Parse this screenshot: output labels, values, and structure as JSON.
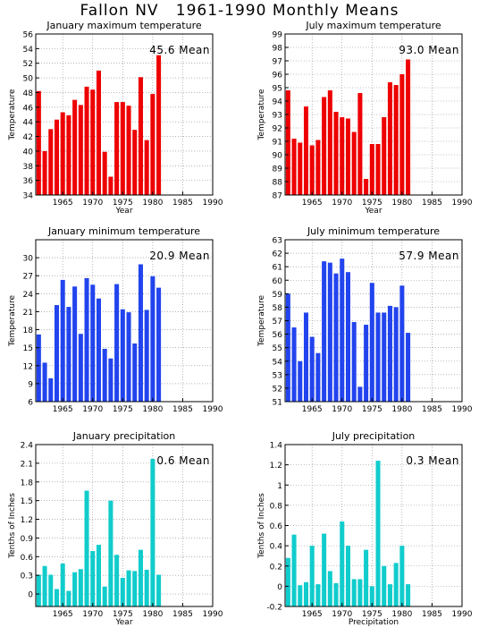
{
  "page_title": "Fallon NV   1961-1990 Monthly Means",
  "chart_data": [
    {
      "type": "bar",
      "title": "January maximum temperature",
      "mean_label": "45.6 Mean",
      "xlabel": "Year",
      "ylabel": "Temperature",
      "color": "#ee0000",
      "ylim": [
        34,
        56
      ],
      "yticks": [
        34,
        36,
        38,
        40,
        42,
        44,
        46,
        48,
        50,
        52,
        54,
        56
      ],
      "xlim": [
        1960.5,
        1990
      ],
      "xticks": [
        1965,
        1970,
        1975,
        1980,
        1985,
        1990
      ],
      "grid": true,
      "x": [
        1961,
        1962,
        1963,
        1964,
        1965,
        1966,
        1967,
        1968,
        1969,
        1970,
        1971,
        1972,
        1973,
        1974,
        1975,
        1976,
        1977,
        1978,
        1979,
        1980,
        1981
      ],
      "values": [
        48.2,
        40.0,
        43.0,
        44.3,
        45.3,
        44.9,
        47.0,
        46.3,
        48.8,
        48.4,
        51.0,
        39.9,
        36.5,
        46.7,
        46.7,
        46.2,
        42.9,
        50.1,
        41.5,
        47.8,
        53.1
      ]
    },
    {
      "type": "bar",
      "title": "July maximum temperature",
      "mean_label": "93.0 Mean",
      "xlabel": "Year",
      "ylabel": "Temperature",
      "color": "#ee0000",
      "ylim": [
        87,
        99
      ],
      "yticks": [
        87,
        88,
        89,
        90,
        91,
        92,
        93,
        94,
        95,
        96,
        97,
        98,
        99
      ],
      "xlim": [
        1960.5,
        1990
      ],
      "xticks": [
        1965,
        1970,
        1975,
        1980,
        1985,
        1990
      ],
      "grid": true,
      "x": [
        1961,
        1962,
        1963,
        1964,
        1965,
        1966,
        1967,
        1968,
        1969,
        1970,
        1971,
        1972,
        1973,
        1974,
        1975,
        1976,
        1977,
        1978,
        1979,
        1980,
        1981
      ],
      "values": [
        94.8,
        91.2,
        90.9,
        93.6,
        90.7,
        91.1,
        94.3,
        94.8,
        93.2,
        92.8,
        92.7,
        91.7,
        94.6,
        88.2,
        90.8,
        90.8,
        92.8,
        95.4,
        95.2,
        96.0,
        97.1
      ]
    },
    {
      "type": "bar",
      "title": "January minimum temperature",
      "mean_label": "20.9 Mean",
      "xlabel": "",
      "ylabel": "Temperature",
      "color": "#2244ee",
      "ylim": [
        6,
        33
      ],
      "yticks": [
        6,
        9,
        12,
        15,
        18,
        21,
        24,
        27,
        30
      ],
      "xlim": [
        1960.5,
        1990
      ],
      "xticks": [
        1965,
        1970,
        1975,
        1980,
        1985,
        1990
      ],
      "grid": true,
      "x": [
        1961,
        1962,
        1963,
        1964,
        1965,
        1966,
        1967,
        1968,
        1969,
        1970,
        1971,
        1972,
        1973,
        1974,
        1975,
        1976,
        1977,
        1978,
        1979,
        1980,
        1981
      ],
      "values": [
        17.2,
        12.5,
        9.9,
        22.1,
        26.3,
        21.8,
        25.2,
        17.3,
        26.6,
        25.5,
        23.2,
        14.8,
        13.2,
        25.6,
        21.4,
        20.9,
        15.7,
        28.9,
        21.3,
        26.9,
        25.0
      ]
    },
    {
      "type": "bar",
      "title": "July minimum temperature",
      "mean_label": "57.9 Mean",
      "xlabel": "",
      "ylabel": "Temperature",
      "color": "#2244ee",
      "ylim": [
        51,
        63
      ],
      "yticks": [
        51,
        52,
        53,
        54,
        55,
        56,
        57,
        58,
        59,
        60,
        61,
        62,
        63
      ],
      "xlim": [
        1960.5,
        1990
      ],
      "xticks": [
        1965,
        1970,
        1975,
        1980,
        1985,
        1990
      ],
      "grid": true,
      "x": [
        1961,
        1962,
        1963,
        1964,
        1965,
        1966,
        1967,
        1968,
        1969,
        1970,
        1971,
        1972,
        1973,
        1974,
        1975,
        1976,
        1977,
        1978,
        1979,
        1980,
        1981
      ],
      "values": [
        59.0,
        56.5,
        54.0,
        57.6,
        55.8,
        54.6,
        61.4,
        61.3,
        60.5,
        61.6,
        60.6,
        56.9,
        52.1,
        56.7,
        59.8,
        57.6,
        57.6,
        58.1,
        58.0,
        59.6,
        56.1
      ]
    },
    {
      "type": "bar",
      "title": "January precipitation",
      "mean_label": "0.6 Mean",
      "xlabel": "Year",
      "ylabel": "Tenths of Inches",
      "color": "#11cccc",
      "ylim": [
        -0.2,
        2.4
      ],
      "yticks": [
        0,
        0.3,
        0.6,
        0.9,
        1.2,
        1.5,
        1.8,
        2.1,
        2.4
      ],
      "xlim": [
        1960.5,
        1990
      ],
      "xticks": [
        1965,
        1970,
        1975,
        1980,
        1985,
        1990
      ],
      "grid": true,
      "x": [
        1961,
        1962,
        1963,
        1964,
        1965,
        1966,
        1967,
        1968,
        1969,
        1970,
        1971,
        1972,
        1973,
        1974,
        1975,
        1976,
        1977,
        1978,
        1979,
        1980,
        1981
      ],
      "values": [
        0.31,
        0.45,
        0.31,
        0.08,
        0.49,
        0.05,
        0.35,
        0.4,
        1.66,
        0.69,
        0.79,
        0.12,
        1.5,
        0.63,
        0.26,
        0.38,
        0.37,
        0.71,
        0.39,
        2.17,
        0.31
      ]
    },
    {
      "type": "bar",
      "title": "July precipitation",
      "mean_label": "0.3 Mean",
      "xlabel": "Precipitation",
      "ylabel": "Tenths of Inches",
      "color": "#11cccc",
      "ylim": [
        -0.2,
        1.4
      ],
      "yticks": [
        -0.2,
        0,
        0.2,
        0.4,
        0.6,
        0.8,
        1,
        1.2,
        1.4
      ],
      "xlim": [
        1960.5,
        1990
      ],
      "xticks": [
        1965,
        1970,
        1975,
        1980,
        1985,
        1990
      ],
      "grid": true,
      "x": [
        1961,
        1962,
        1963,
        1964,
        1965,
        1966,
        1967,
        1968,
        1969,
        1970,
        1971,
        1972,
        1973,
        1974,
        1975,
        1976,
        1977,
        1978,
        1979,
        1980,
        1981
      ],
      "values": [
        0.28,
        0.51,
        0.01,
        0.04,
        0.4,
        0.02,
        0.52,
        0.15,
        0.03,
        0.64,
        0.4,
        0.07,
        0.07,
        0.36,
        0.0,
        1.24,
        0.2,
        0.02,
        0.23,
        0.4,
        0.02
      ]
    }
  ]
}
